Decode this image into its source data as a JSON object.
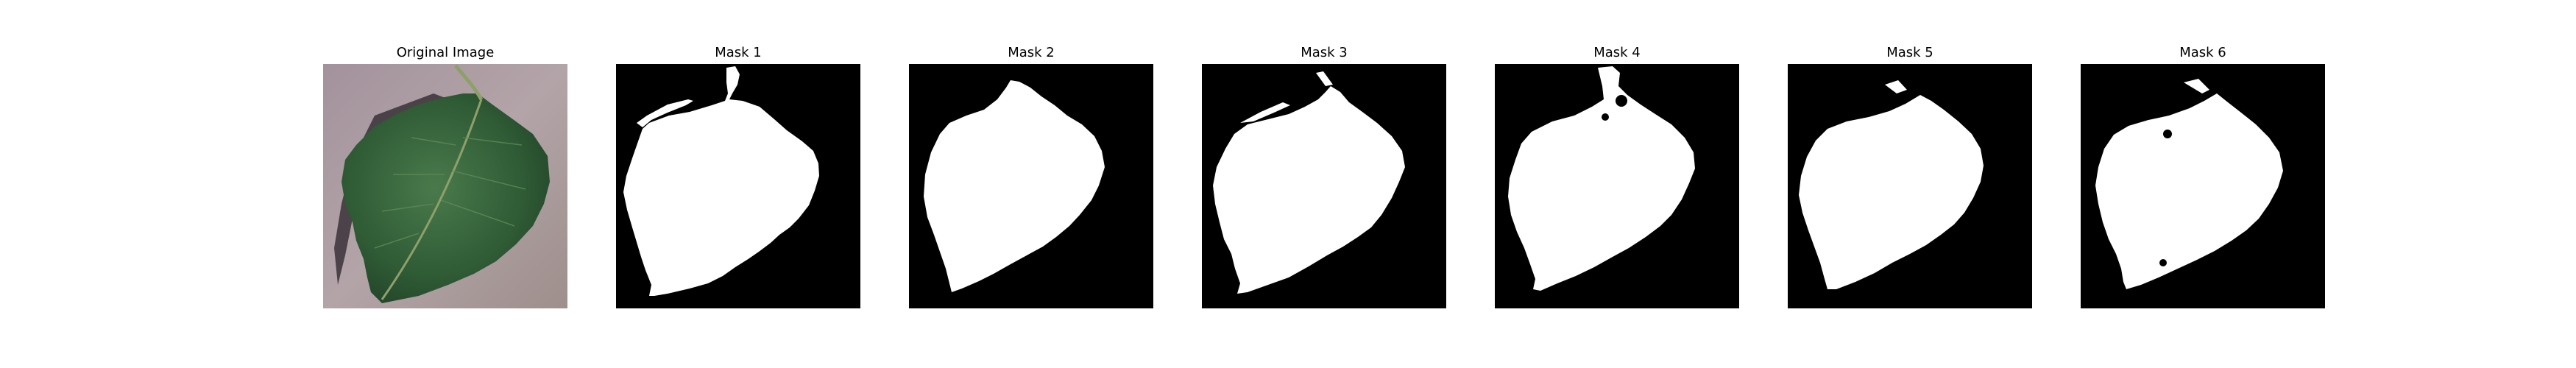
{
  "figure": {
    "panels": [
      {
        "title": "Original Image",
        "kind": "photo"
      },
      {
        "title": "Mask 1",
        "kind": "mask"
      },
      {
        "title": "Mask 2",
        "kind": "mask"
      },
      {
        "title": "Mask 3",
        "kind": "mask"
      },
      {
        "title": "Mask 4",
        "kind": "mask"
      },
      {
        "title": "Mask 5",
        "kind": "mask"
      },
      {
        "title": "Mask 6",
        "kind": "mask"
      }
    ]
  },
  "colors": {
    "mask_background": "#000000",
    "mask_foreground": "#ffffff",
    "photo_background": "#a3929a",
    "leaf": "#2f5b35",
    "leaf_shadow": "#3a3338",
    "stem": "#8ea06a"
  }
}
